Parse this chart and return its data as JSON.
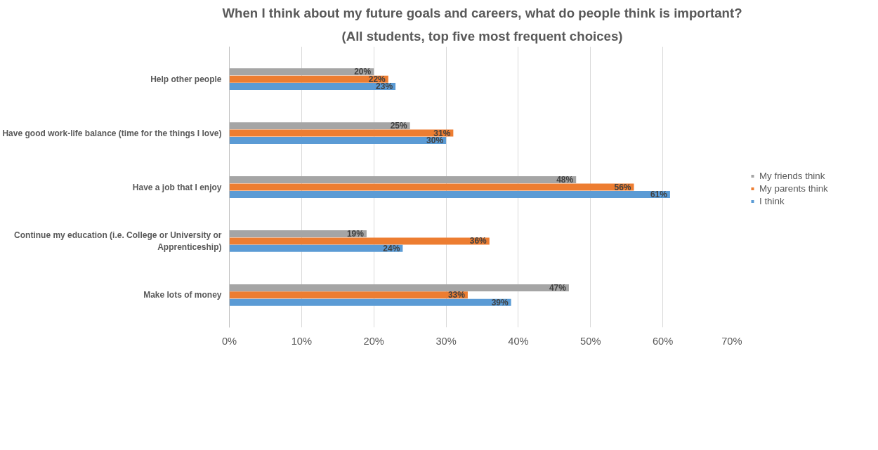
{
  "chart_data": {
    "type": "bar",
    "orientation": "horizontal",
    "title": "When I think about my future goals and careers, what do people think is important?",
    "subtitle": "(All students, top five most frequent choices)",
    "categories": [
      "Help other people",
      "Have good work-life balance (time for the things I love)",
      "Have a job that I enjoy",
      "Continue my education (i.e. College or University or Apprenticeship)",
      "Make lots of money"
    ],
    "series": [
      {
        "name": "My friends think",
        "color": "#a5a5a5",
        "values": [
          20,
          25,
          48,
          19,
          47
        ],
        "value_labels": [
          "20%",
          "25%",
          "48%",
          "19%",
          "47%"
        ]
      },
      {
        "name": "My parents think",
        "color": "#ed7d31",
        "values": [
          22,
          31,
          56,
          36,
          33
        ],
        "value_labels": [
          "22%",
          "31%",
          "56%",
          "36%",
          "33%"
        ]
      },
      {
        "name": "I think",
        "color": "#5b9bd5",
        "values": [
          23,
          30,
          61,
          24,
          39
        ],
        "value_labels": [
          "23%",
          "30%",
          "61%",
          "24%",
          "39%"
        ]
      }
    ],
    "xlim": [
      0,
      70
    ],
    "xticks": [
      {
        "value": 0,
        "label": "0%"
      },
      {
        "value": 10,
        "label": "10%"
      },
      {
        "value": 20,
        "label": "20%"
      },
      {
        "value": 30,
        "label": "30%"
      },
      {
        "value": 40,
        "label": "40%"
      },
      {
        "value": 50,
        "label": "50%"
      },
      {
        "value": 60,
        "label": "60%"
      },
      {
        "value": 70,
        "label": "70%"
      }
    ],
    "grid": "x",
    "legend": "right"
  }
}
